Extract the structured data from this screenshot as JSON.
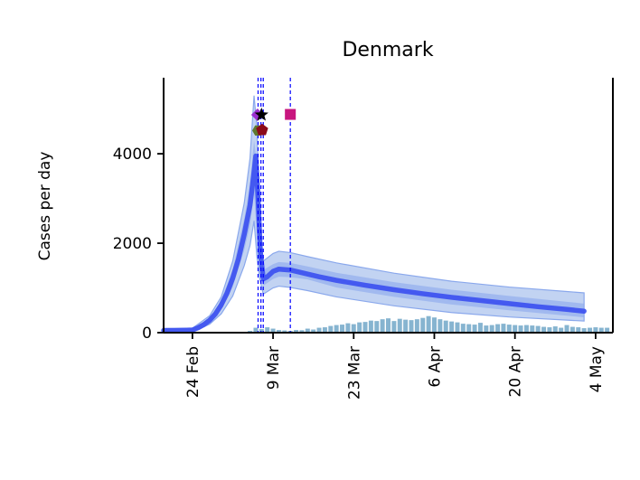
{
  "chart_data": {
    "type": "line",
    "title": "Denmark",
    "xlabel": "",
    "ylabel": "Cases per day",
    "x_unit": "days since 19 Feb",
    "x_ticks": [
      {
        "label": "24 Feb",
        "day": 5
      },
      {
        "label": "9 Mar",
        "day": 19
      },
      {
        "label": "23 Mar",
        "day": 33
      },
      {
        "label": "6 Apr",
        "day": 47
      },
      {
        "label": "20 Apr",
        "day": 61
      },
      {
        "label": "4 May",
        "day": 75
      }
    ],
    "y_ticks": [
      0,
      2000,
      4000
    ],
    "ylim": [
      0,
      5700
    ],
    "xlim": [
      0,
      78
    ],
    "colors": {
      "model": "#3a4ff0",
      "band_outer": "#aec4ee",
      "band_inner": "#8aa8ec",
      "bars": "#86b4d0",
      "intervention_line": "#0000ff"
    },
    "model_median": [
      [
        0,
        50
      ],
      [
        2,
        50
      ],
      [
        4,
        55
      ],
      [
        5,
        60
      ],
      [
        6,
        110
      ],
      [
        7,
        180
      ],
      [
        8,
        280
      ],
      [
        9,
        420
      ],
      [
        10,
        620
      ],
      [
        11,
        880
      ],
      [
        12,
        1220
      ],
      [
        13,
        1650
      ],
      [
        14,
        2200
      ],
      [
        15,
        2850
      ],
      [
        15.7,
        3600
      ],
      [
        16,
        3950
      ],
      [
        16.4,
        3000
      ],
      [
        16.8,
        1800
      ],
      [
        17.3,
        1200
      ],
      [
        18,
        1250
      ],
      [
        19,
        1370
      ],
      [
        20,
        1420
      ],
      [
        22,
        1400
      ],
      [
        24,
        1340
      ],
      [
        27,
        1250
      ],
      [
        30,
        1170
      ],
      [
        35,
        1060
      ],
      [
        40,
        960
      ],
      [
        45,
        870
      ],
      [
        50,
        790
      ],
      [
        55,
        720
      ],
      [
        60,
        650
      ],
      [
        65,
        580
      ],
      [
        70,
        520
      ],
      [
        73,
        480
      ]
    ],
    "band_inner": {
      "upper": [
        [
          0,
          70
        ],
        [
          5,
          80
        ],
        [
          8,
          330
        ],
        [
          10,
          720
        ],
        [
          12,
          1420
        ],
        [
          14,
          2550
        ],
        [
          15,
          3300
        ],
        [
          15.7,
          4300
        ],
        [
          16.2,
          3800
        ],
        [
          16.7,
          2100
        ],
        [
          17.3,
          1400
        ],
        [
          19,
          1530
        ],
        [
          20,
          1580
        ],
        [
          22,
          1560
        ],
        [
          25,
          1480
        ],
        [
          30,
          1340
        ],
        [
          40,
          1130
        ],
        [
          50,
          960
        ],
        [
          60,
          820
        ],
        [
          70,
          690
        ],
        [
          73,
          650
        ]
      ],
      "lower": [
        [
          0,
          30
        ],
        [
          5,
          40
        ],
        [
          8,
          230
        ],
        [
          10,
          520
        ],
        [
          12,
          1020
        ],
        [
          14,
          1850
        ],
        [
          15,
          2400
        ],
        [
          15.7,
          3100
        ],
        [
          16.2,
          2200
        ],
        [
          16.7,
          1500
        ],
        [
          17.3,
          1050
        ],
        [
          19,
          1200
        ],
        [
          20,
          1250
        ],
        [
          22,
          1240
        ],
        [
          25,
          1190
        ],
        [
          30,
          1010
        ],
        [
          40,
          800
        ],
        [
          50,
          630
        ],
        [
          60,
          500
        ],
        [
          70,
          380
        ],
        [
          73,
          340
        ]
      ]
    },
    "band_outer": {
      "upper": [
        [
          0,
          90
        ],
        [
          5,
          100
        ],
        [
          8,
          380
        ],
        [
          10,
          800
        ],
        [
          12,
          1600
        ],
        [
          14,
          2900
        ],
        [
          15,
          3900
        ],
        [
          15.7,
          5300
        ],
        [
          16.2,
          4600
        ],
        [
          16.7,
          2500
        ],
        [
          17.3,
          1600
        ],
        [
          19,
          1770
        ],
        [
          20,
          1820
        ],
        [
          22,
          1790
        ],
        [
          25,
          1700
        ],
        [
          30,
          1560
        ],
        [
          40,
          1330
        ],
        [
          50,
          1150
        ],
        [
          60,
          1020
        ],
        [
          70,
          920
        ],
        [
          73,
          890
        ]
      ],
      "lower": [
        [
          0,
          15
        ],
        [
          5,
          20
        ],
        [
          8,
          190
        ],
        [
          10,
          420
        ],
        [
          12,
          820
        ],
        [
          14,
          1500
        ],
        [
          15,
          1950
        ],
        [
          15.7,
          2500
        ],
        [
          16.2,
          1700
        ],
        [
          16.7,
          1200
        ],
        [
          17.3,
          860
        ],
        [
          19,
          1000
        ],
        [
          20,
          1040
        ],
        [
          22,
          1010
        ],
        [
          25,
          940
        ],
        [
          30,
          800
        ],
        [
          40,
          600
        ],
        [
          50,
          450
        ],
        [
          60,
          350
        ],
        [
          70,
          280
        ],
        [
          73,
          260
        ]
      ]
    },
    "observed_bars": [
      [
        15,
        40
      ],
      [
        16,
        110
      ],
      [
        17,
        80
      ],
      [
        18,
        120
      ],
      [
        19,
        90
      ],
      [
        20,
        60
      ],
      [
        21,
        50
      ],
      [
        22,
        40
      ],
      [
        23,
        60
      ],
      [
        24,
        55
      ],
      [
        25,
        90
      ],
      [
        26,
        70
      ],
      [
        27,
        110
      ],
      [
        28,
        120
      ],
      [
        29,
        150
      ],
      [
        30,
        170
      ],
      [
        31,
        180
      ],
      [
        32,
        210
      ],
      [
        33,
        190
      ],
      [
        34,
        230
      ],
      [
        35,
        240
      ],
      [
        36,
        270
      ],
      [
        37,
        260
      ],
      [
        38,
        300
      ],
      [
        39,
        320
      ],
      [
        40,
        260
      ],
      [
        41,
        310
      ],
      [
        42,
        290
      ],
      [
        43,
        280
      ],
      [
        44,
        300
      ],
      [
        45,
        330
      ],
      [
        46,
        370
      ],
      [
        47,
        340
      ],
      [
        48,
        300
      ],
      [
        49,
        270
      ],
      [
        50,
        250
      ],
      [
        51,
        230
      ],
      [
        52,
        200
      ],
      [
        53,
        190
      ],
      [
        54,
        180
      ],
      [
        55,
        220
      ],
      [
        56,
        160
      ],
      [
        57,
        170
      ],
      [
        58,
        190
      ],
      [
        59,
        200
      ],
      [
        60,
        180
      ],
      [
        61,
        170
      ],
      [
        62,
        160
      ],
      [
        63,
        170
      ],
      [
        64,
        160
      ],
      [
        65,
        150
      ],
      [
        66,
        130
      ],
      [
        67,
        120
      ],
      [
        68,
        140
      ],
      [
        69,
        110
      ],
      [
        70,
        170
      ],
      [
        71,
        130
      ],
      [
        72,
        120
      ],
      [
        73,
        100
      ],
      [
        74,
        110
      ],
      [
        75,
        120
      ],
      [
        76,
        110
      ],
      [
        77,
        110
      ]
    ],
    "interventions": [
      {
        "day": 16.4
      },
      {
        "day": 16.9
      },
      {
        "day": 17.3
      },
      {
        "day": 22.0
      }
    ],
    "markers": [
      {
        "day": 16.3,
        "value": 4870,
        "shape": "diamond",
        "color": "#9b30d0"
      },
      {
        "day": 17.0,
        "value": 4870,
        "shape": "star",
        "color": "#000000"
      },
      {
        "day": 16.4,
        "value": 4520,
        "shape": "hexagon",
        "color": "#5f7a2e"
      },
      {
        "day": 17.1,
        "value": 4530,
        "shape": "pentagon",
        "color": "#8b0a1a"
      },
      {
        "day": 22.0,
        "value": 4880,
        "shape": "square",
        "color": "#c8167e"
      }
    ]
  }
}
